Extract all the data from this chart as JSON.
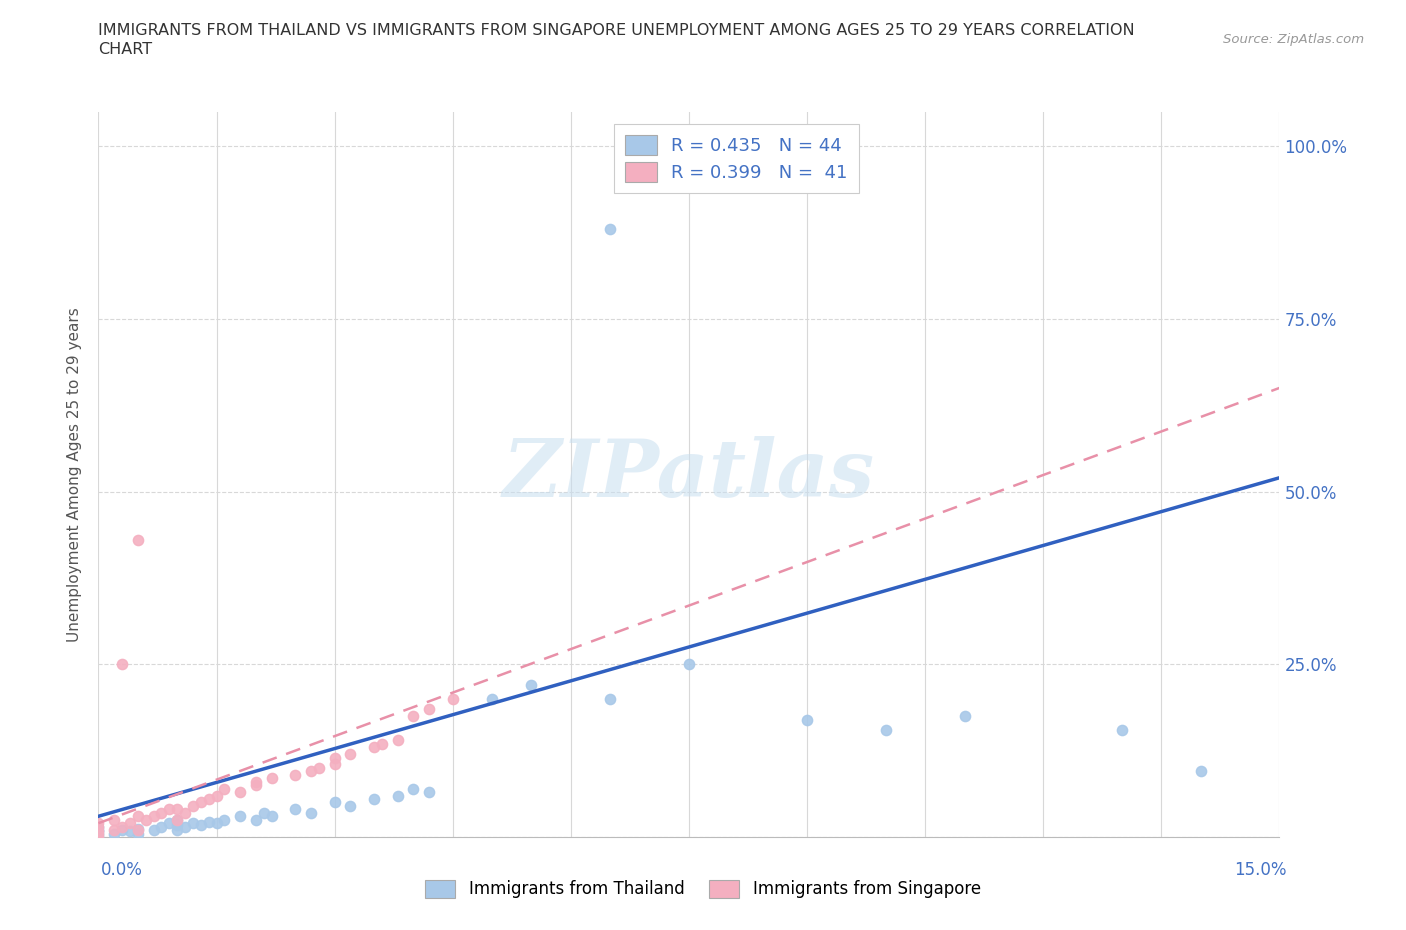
{
  "title_line1": "IMMIGRANTS FROM THAILAND VS IMMIGRANTS FROM SINGAPORE UNEMPLOYMENT AMONG AGES 25 TO 29 YEARS CORRELATION",
  "title_line2": "CHART",
  "source": "Source: ZipAtlas.com",
  "ylabel": "Unemployment Among Ages 25 to 29 years",
  "thailand_color": "#a8c8e8",
  "singapore_color": "#f4afc0",
  "thailand_line_color": "#3060c0",
  "singapore_line_color": "#e890a8",
  "watermark_color": "#c8dff0",
  "xlim": [
    0,
    0.15
  ],
  "ylim": [
    0,
    1.05
  ],
  "ytick_positions": [
    0.0,
    0.25,
    0.5,
    0.75,
    1.0
  ],
  "ytick_labels": [
    "",
    "25.0%",
    "50.0%",
    "75.0%",
    "100.0%"
  ],
  "th_x": [
    0.0,
    0.0,
    0.0,
    0.0,
    0.0,
    0.002,
    0.003,
    0.004,
    0.005,
    0.005,
    0.007,
    0.008,
    0.009,
    0.01,
    0.01,
    0.01,
    0.011,
    0.012,
    0.013,
    0.014,
    0.015,
    0.016,
    0.018,
    0.02,
    0.021,
    0.022,
    0.025,
    0.027,
    0.03,
    0.032,
    0.035,
    0.038,
    0.04,
    0.042,
    0.05,
    0.055,
    0.065,
    0.075,
    0.09,
    0.1,
    0.11,
    0.13,
    0.14,
    0.065
  ],
  "th_y": [
    0.0,
    0.005,
    0.008,
    0.01,
    0.015,
    0.005,
    0.01,
    0.008,
    0.005,
    0.012,
    0.01,
    0.015,
    0.02,
    0.01,
    0.018,
    0.025,
    0.015,
    0.02,
    0.018,
    0.022,
    0.02,
    0.025,
    0.03,
    0.025,
    0.035,
    0.03,
    0.04,
    0.035,
    0.05,
    0.045,
    0.055,
    0.06,
    0.07,
    0.065,
    0.2,
    0.22,
    0.2,
    0.25,
    0.17,
    0.155,
    0.175,
    0.155,
    0.095,
    0.88
  ],
  "sg_x": [
    0.0,
    0.0,
    0.0,
    0.0,
    0.0,
    0.002,
    0.002,
    0.003,
    0.004,
    0.005,
    0.005,
    0.006,
    0.007,
    0.008,
    0.009,
    0.01,
    0.01,
    0.011,
    0.012,
    0.013,
    0.014,
    0.015,
    0.016,
    0.018,
    0.02,
    0.02,
    0.022,
    0.025,
    0.027,
    0.028,
    0.03,
    0.03,
    0.032,
    0.035,
    0.036,
    0.038,
    0.04,
    0.042,
    0.045,
    0.003,
    0.005
  ],
  "sg_y": [
    0.0,
    0.005,
    0.008,
    0.015,
    0.02,
    0.01,
    0.025,
    0.015,
    0.02,
    0.01,
    0.03,
    0.025,
    0.03,
    0.035,
    0.04,
    0.025,
    0.04,
    0.035,
    0.045,
    0.05,
    0.055,
    0.06,
    0.07,
    0.065,
    0.075,
    0.08,
    0.085,
    0.09,
    0.095,
    0.1,
    0.105,
    0.115,
    0.12,
    0.13,
    0.135,
    0.14,
    0.175,
    0.185,
    0.2,
    0.25,
    0.43
  ],
  "th_line_x": [
    0.0,
    0.15
  ],
  "th_line_y": [
    0.03,
    0.52
  ],
  "sg_line_x": [
    0.0,
    0.15
  ],
  "sg_line_y": [
    0.02,
    0.65
  ]
}
